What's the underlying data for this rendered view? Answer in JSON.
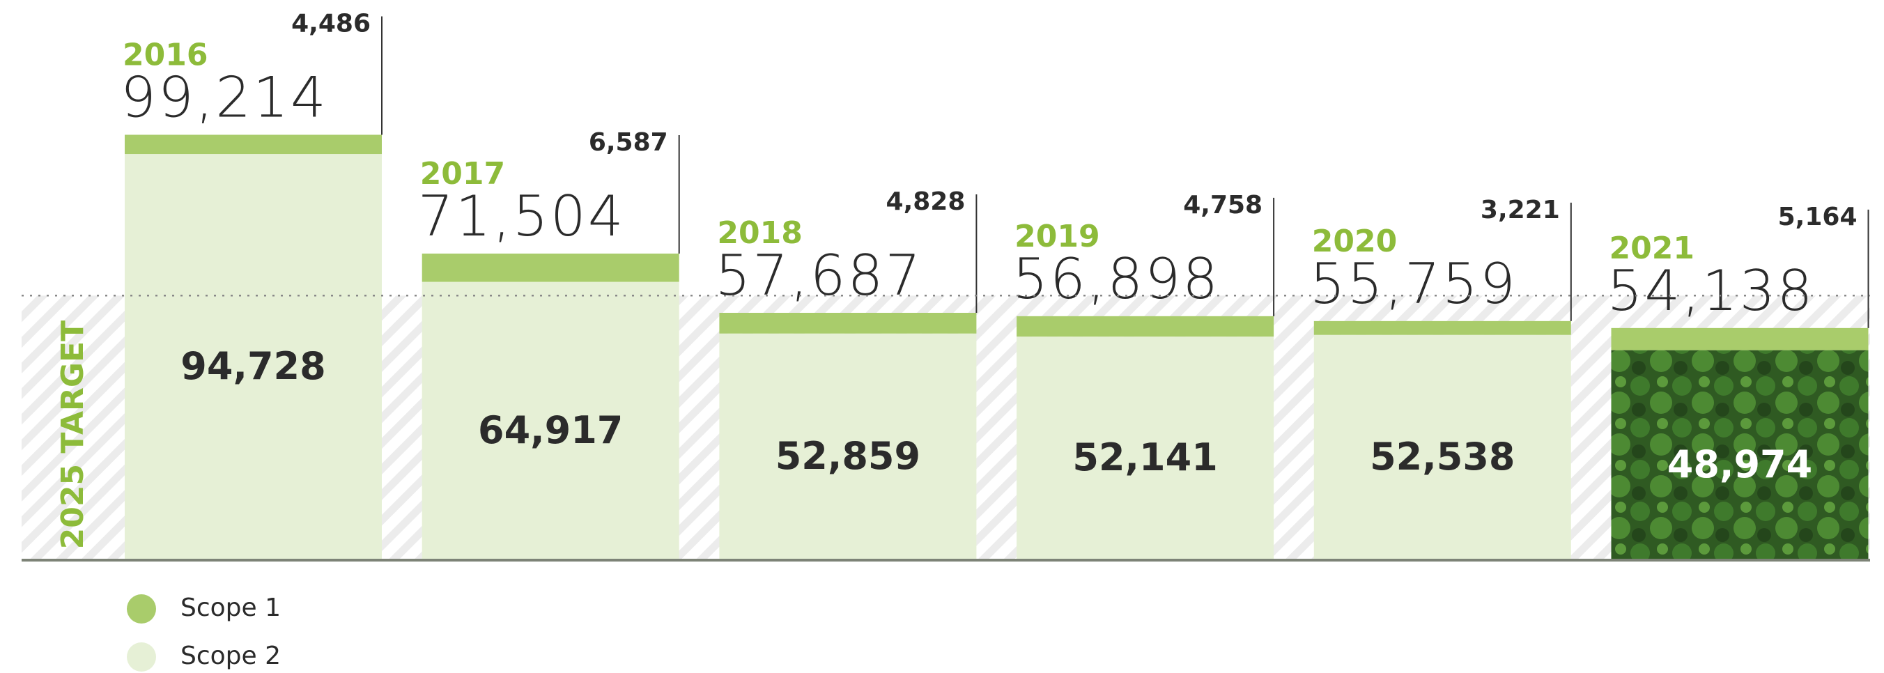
{
  "chart_data": {
    "type": "stacked_bar",
    "categories": [
      "2016",
      "2017",
      "2018",
      "2019",
      "2020",
      "2021"
    ],
    "series": [
      {
        "name": "Scope 1",
        "color": "#a9cc6b",
        "values": [
          4486,
          6587,
          4828,
          4758,
          3221,
          5164
        ],
        "value_labels": [
          "4,486",
          "6,587",
          "4,828",
          "4,758",
          "3,221",
          "5,164"
        ]
      },
      {
        "name": "Scope 2",
        "color": "#e6f0d6",
        "values": [
          94728,
          64917,
          52859,
          52141,
          52538,
          48974
        ],
        "value_labels": [
          "94,728",
          "64,917",
          "52,859",
          "52,141",
          "52,538",
          "48,974"
        ]
      }
    ],
    "totals": [
      99214,
      71504,
      57687,
      56898,
      55759,
      54138
    ],
    "total_labels": [
      "99,214",
      "71,504",
      "57,687",
      "56,898",
      "55,759",
      "54,138"
    ],
    "target": {
      "label": "2025 TARGET",
      "value": 61700
    },
    "ylim": [
      0,
      130000
    ]
  }
}
